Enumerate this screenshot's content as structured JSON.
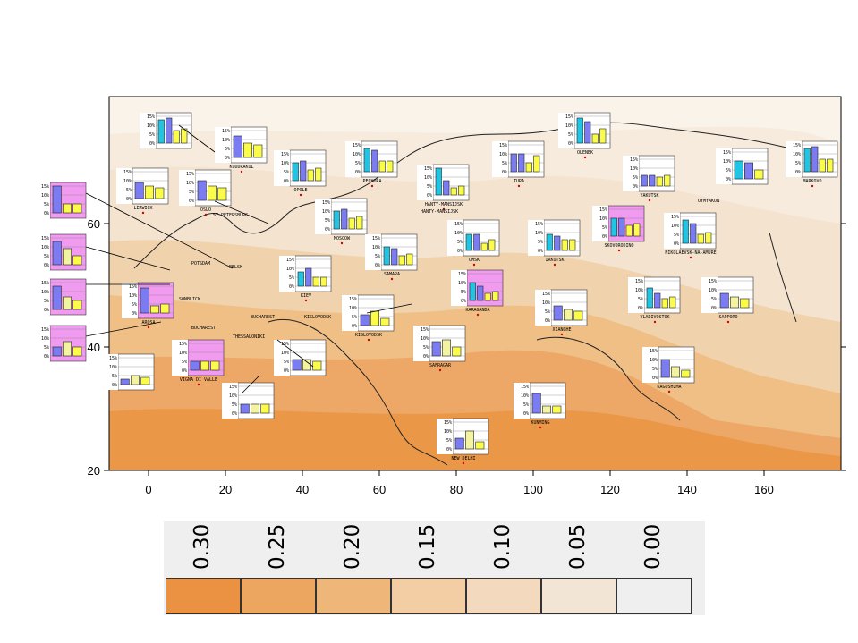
{
  "map": {
    "x_ticks": [
      "0",
      "20",
      "40",
      "60",
      "80",
      "100",
      "120",
      "140",
      "160"
    ],
    "y_ticks": [
      "20",
      "40",
      "60"
    ],
    "chart_tick_labels": [
      "15%",
      "10%",
      "5%",
      "0%"
    ],
    "colors": {
      "band_1": "#f4e6d6",
      "band_2": "#f0d2ad",
      "band_3": "#efbf86",
      "band_4": "#eda867",
      "band_5": "#ea9848",
      "bar_blue": "#7b7bf2",
      "bar_cyan": "#1fc5e2",
      "bar_yellow": "#fbfb4a",
      "bar_paleyellow": "#f3f3a0",
      "highlight_box": "#f09af0"
    },
    "cities": [
      {
        "name": "LERWICK"
      },
      {
        "name": "OSLO"
      },
      {
        "name": "KODDRAKUL"
      },
      {
        "name": "ST.PETERSBURG"
      },
      {
        "name": "OPOLE"
      },
      {
        "name": "PECHORA"
      },
      {
        "name": "HANTY-MANSIJSK"
      },
      {
        "name": "TURA"
      },
      {
        "name": "OLENEK"
      },
      {
        "name": "YAKUTSK"
      },
      {
        "name": "OYMYAKON"
      },
      {
        "name": "MARKOVO"
      },
      {
        "name": "POTSDAM"
      },
      {
        "name": "BELSK"
      },
      {
        "name": "KIEV"
      },
      {
        "name": "MOSCOW"
      },
      {
        "name": "SAMARA"
      },
      {
        "name": "OMSK"
      },
      {
        "name": "IRKUTSK"
      },
      {
        "name": "SKOVORODINO"
      },
      {
        "name": "NIKOLAEVSK-NA-AMURE"
      },
      {
        "name": "KARAGANDA"
      },
      {
        "name": "AROSA"
      },
      {
        "name": "SONBLICK"
      },
      {
        "name": "VIGNA DI VALLE"
      },
      {
        "name": "BUCHAREST"
      },
      {
        "name": "KISLOVODSK"
      },
      {
        "name": "THESSALONIKI"
      },
      {
        "name": "VLADIVOSTOK"
      },
      {
        "name": "SAPPORO"
      },
      {
        "name": "XIANGHE"
      },
      {
        "name": "KAGOSHIMA"
      },
      {
        "name": "SAFRAGAR"
      },
      {
        "name": "NEW DELHI"
      },
      {
        "name": "KUNMING"
      },
      {
        "name": "LISBOA"
      }
    ]
  },
  "legend": {
    "labels": [
      "0.30",
      "0.25",
      "0.20",
      "0.15",
      "0.10",
      "0.05",
      "0.00"
    ],
    "swatches": [
      "#ea9242",
      "#eca660",
      "#efb679",
      "#f3cda4",
      "#f3d9bd",
      "#f2e5d6",
      "#efefef"
    ]
  }
}
